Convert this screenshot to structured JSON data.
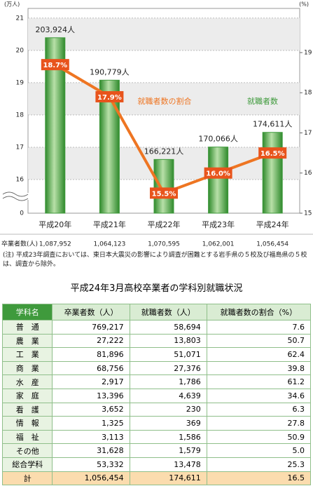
{
  "chart_data": {
    "type": "bar_line",
    "y_label": "(万人)",
    "y2_label": "(%)",
    "categories": [
      "平成20年",
      "平成21年",
      "平成22年",
      "平成23年",
      "平成24年"
    ],
    "series": [
      {
        "name": "就職者数",
        "type": "bar",
        "color": "#3f9a3c",
        "values": [
          20.3924,
          19.0779,
          16.6221,
          17.0066,
          17.4611
        ],
        "value_labels": [
          "203,924人",
          "190,779人",
          "166,221人",
          "170,066人",
          "174,611人"
        ]
      },
      {
        "name": "就職者数の割合",
        "type": "line",
        "axis": "y2",
        "color": "#ee7522",
        "values": [
          18.7,
          17.9,
          15.5,
          16.0,
          16.5
        ],
        "value_labels": [
          "18.7%",
          "17.9%",
          "15.5%",
          "16.0%",
          "16.5%"
        ]
      }
    ],
    "ylim": [
      0,
      21.3
    ],
    "yticks": [
      0,
      16,
      17,
      18,
      19,
      20,
      21
    ],
    "y_break": [
      0,
      16
    ],
    "y2lim": [
      15,
      20.1
    ],
    "y2ticks": [
      15,
      16,
      17,
      18,
      19
    ],
    "grid": true,
    "table_row": {
      "label": "卒業者数(人)",
      "values": [
        "1,087,952",
        "1,064,123",
        "1,070,595",
        "1,062,001",
        "1,056,454"
      ]
    }
  },
  "note": "(注) 平成23年調査においては、東日本大震災の影響により調査が困難とする岩手県の５校及び福島県の５校は、調査から除外。",
  "table": {
    "title": "平成24年3月高校卒業者の学科別就職状況",
    "columns": [
      "学科名",
      "卒業者数（人）",
      "就職者数（人）",
      "就職者数の割合（%）"
    ],
    "rows": [
      [
        "普　通",
        "769,217",
        "58,694",
        "7.6"
      ],
      [
        "農　業",
        "27,222",
        "13,803",
        "50.7"
      ],
      [
        "工　業",
        "81,896",
        "51,071",
        "62.4"
      ],
      [
        "商　業",
        "68,756",
        "27,376",
        "39.8"
      ],
      [
        "水　産",
        "2,917",
        "1,786",
        "61.2"
      ],
      [
        "家　庭",
        "13,396",
        "4,639",
        "34.6"
      ],
      [
        "看　護",
        "3,652",
        "230",
        "6.3"
      ],
      [
        "情　報",
        "1,325",
        "369",
        "27.8"
      ],
      [
        "福　祉",
        "3,113",
        "1,586",
        "50.9"
      ],
      [
        "その他",
        "31,628",
        "1,579",
        "5.0"
      ],
      [
        "総合学科",
        "53,332",
        "13,478",
        "25.3"
      ],
      [
        "計",
        "1,056,454",
        "174,611",
        "16.5"
      ]
    ]
  }
}
